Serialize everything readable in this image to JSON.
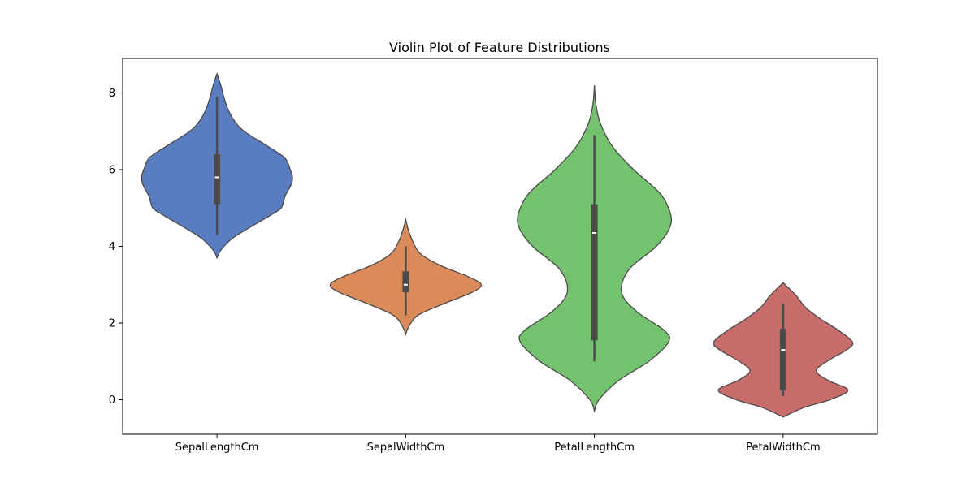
{
  "chart_data": {
    "type": "violin",
    "title": "Violin Plot of Feature Distributions",
    "xlabel": "",
    "ylabel": "",
    "categories": [
      "SepalLengthCm",
      "SepalWidthCm",
      "PetalLengthCm",
      "PetalWidthCm"
    ],
    "ylim": [
      -0.9,
      8.9
    ],
    "yticks": [
      0,
      2,
      4,
      6,
      8
    ],
    "grid": false,
    "colors": [
      "#5a7dc2",
      "#db8a5a",
      "#74c26e",
      "#c76b6b"
    ],
    "violins": [
      {
        "name": "SepalLengthCm",
        "min": 4.3,
        "q1": 5.1,
        "median": 5.8,
        "q3": 6.4,
        "max": 7.9,
        "kde_range": [
          3.7,
          8.5
        ],
        "density": [
          [
            3.7,
            0.0
          ],
          [
            3.9,
            0.05
          ],
          [
            4.2,
            0.2
          ],
          [
            4.5,
            0.44
          ],
          [
            4.8,
            0.7
          ],
          [
            5.0,
            0.85
          ],
          [
            5.3,
            0.9
          ],
          [
            5.6,
            0.98
          ],
          [
            5.8,
            1.0
          ],
          [
            6.0,
            0.97
          ],
          [
            6.3,
            0.9
          ],
          [
            6.6,
            0.68
          ],
          [
            7.0,
            0.36
          ],
          [
            7.3,
            0.22
          ],
          [
            7.6,
            0.14
          ],
          [
            7.9,
            0.09
          ],
          [
            8.2,
            0.05
          ],
          [
            8.5,
            0.0
          ]
        ]
      },
      {
        "name": "SepalWidthCm",
        "min": 2.2,
        "q1": 2.8,
        "median": 3.0,
        "q3": 3.35,
        "max": 4.0,
        "kde_range": [
          1.7,
          4.7
        ],
        "density": [
          [
            1.7,
            0.0
          ],
          [
            1.9,
            0.04
          ],
          [
            2.2,
            0.16
          ],
          [
            2.5,
            0.5
          ],
          [
            2.8,
            0.88
          ],
          [
            3.0,
            1.0
          ],
          [
            3.2,
            0.84
          ],
          [
            3.5,
            0.46
          ],
          [
            3.8,
            0.2
          ],
          [
            4.1,
            0.1
          ],
          [
            4.4,
            0.04
          ],
          [
            4.7,
            0.0
          ]
        ]
      },
      {
        "name": "PetalLengthCm",
        "min": 1.0,
        "q1": 1.55,
        "median": 4.35,
        "q3": 5.1,
        "max": 6.9,
        "kde_range": [
          -0.3,
          8.2
        ],
        "density": [
          [
            -0.3,
            0.0
          ],
          [
            0.0,
            0.06
          ],
          [
            0.5,
            0.32
          ],
          [
            1.0,
            0.72
          ],
          [
            1.5,
            0.98
          ],
          [
            1.8,
            0.93
          ],
          [
            2.3,
            0.56
          ],
          [
            2.8,
            0.36
          ],
          [
            3.4,
            0.46
          ],
          [
            4.0,
            0.82
          ],
          [
            4.5,
            1.0
          ],
          [
            4.9,
            1.0
          ],
          [
            5.4,
            0.86
          ],
          [
            6.0,
            0.52
          ],
          [
            6.6,
            0.24
          ],
          [
            7.2,
            0.08
          ],
          [
            7.7,
            0.02
          ],
          [
            8.2,
            0.0
          ]
        ]
      },
      {
        "name": "PetalWidthCm",
        "min": 0.1,
        "q1": 0.25,
        "median": 1.3,
        "q3": 1.85,
        "max": 2.5,
        "kde_range": [
          -0.45,
          3.05
        ],
        "density": [
          [
            -0.45,
            0.0
          ],
          [
            -0.2,
            0.28
          ],
          [
            0.0,
            0.62
          ],
          [
            0.25,
            0.86
          ],
          [
            0.5,
            0.6
          ],
          [
            0.75,
            0.44
          ],
          [
            1.0,
            0.58
          ],
          [
            1.3,
            0.84
          ],
          [
            1.5,
            0.92
          ],
          [
            1.8,
            0.74
          ],
          [
            2.1,
            0.5
          ],
          [
            2.4,
            0.3
          ],
          [
            2.7,
            0.18
          ],
          [
            2.9,
            0.08
          ],
          [
            3.05,
            0.0
          ]
        ]
      }
    ]
  }
}
